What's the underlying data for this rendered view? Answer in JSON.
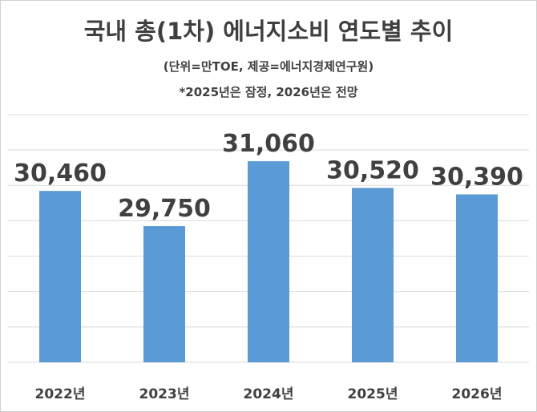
{
  "chart_data": {
    "type": "bar",
    "title": "국내 총(1차) 에너지소비 연도별 추이",
    "subtitle": "(단위=만TOE, 제공=에너지경제연구원)",
    "note": "*2025년은 잠정, 2026년은 전망",
    "categories": [
      "2022년",
      "2023년",
      "2024년",
      "2025년",
      "2026년"
    ],
    "values": [
      30460,
      29750,
      31060,
      30520,
      30390
    ],
    "data_labels": [
      "30,460",
      "29,750",
      "31,060",
      "30,520",
      "30,390"
    ],
    "ylim": [
      27000,
      32000
    ],
    "grid": true,
    "legend": "none",
    "bar_color": "#5b9bd5",
    "grid_color": "#d9d9d9"
  }
}
